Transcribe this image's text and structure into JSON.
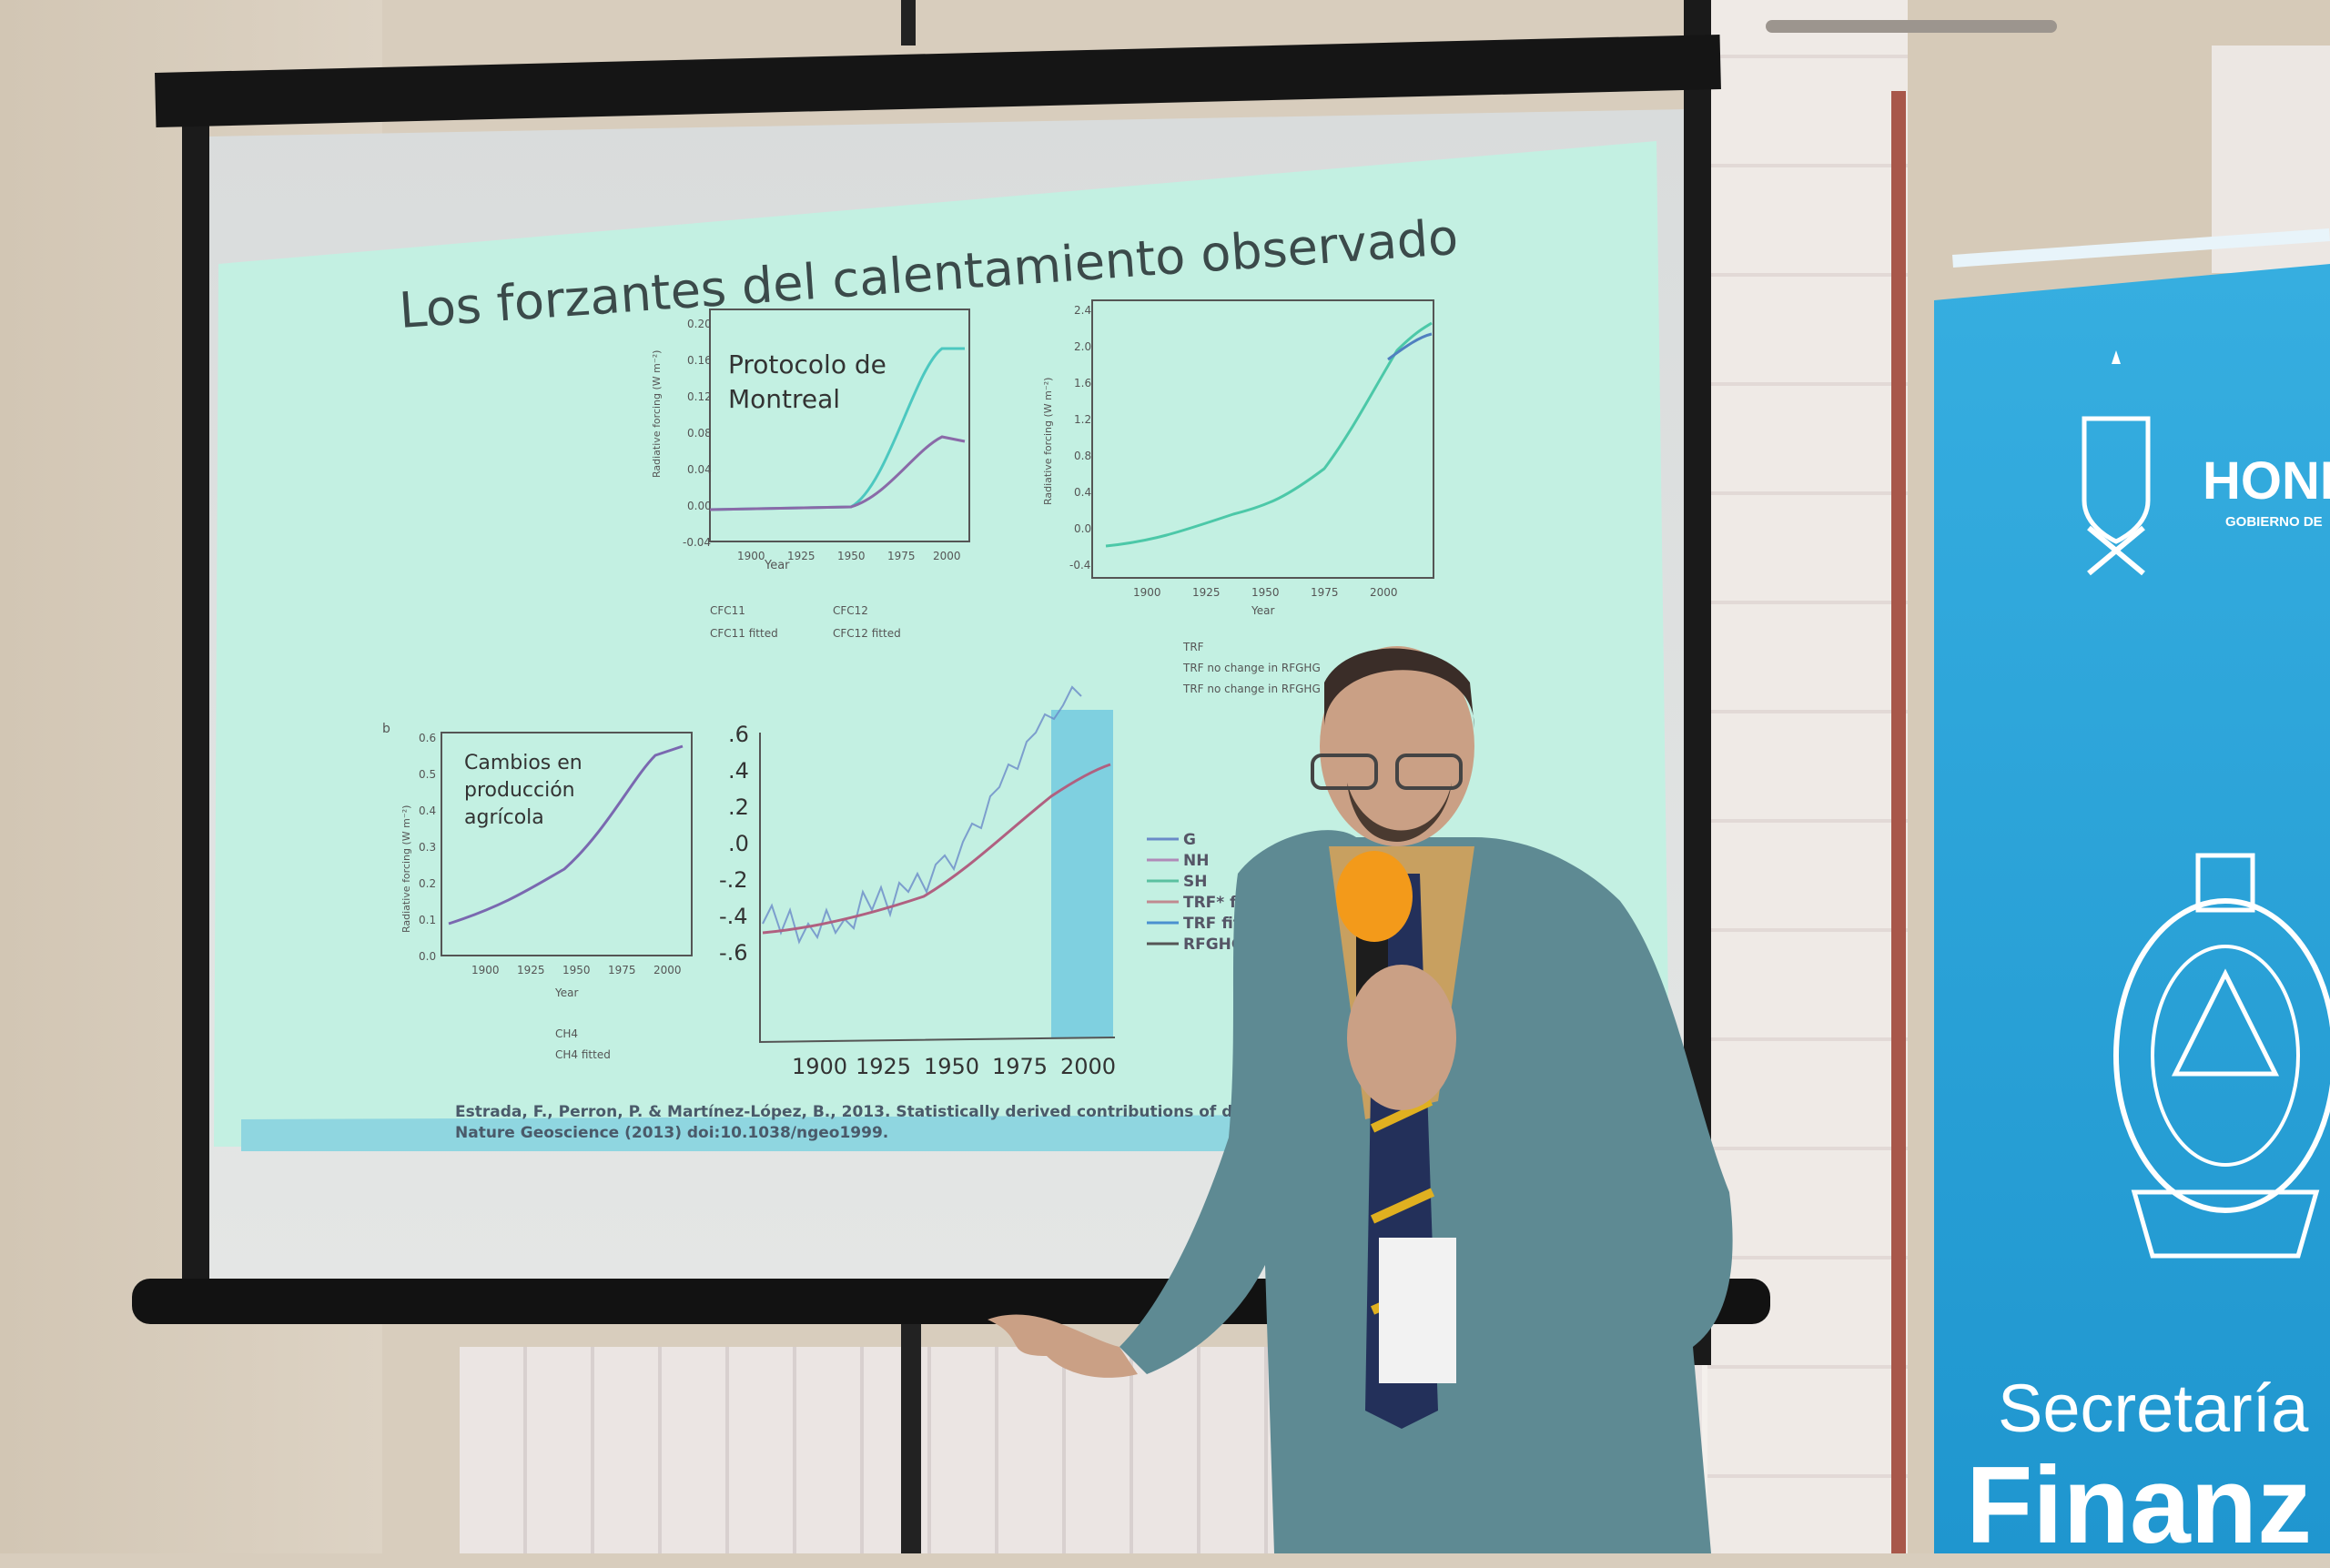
{
  "slide": {
    "title": "Los forzantes del calentamiento observado",
    "panel_top_left": {
      "annotation_line1": "Protocolo de",
      "annotation_line2": "Montreal",
      "yticks": [
        "0.20",
        "0.16",
        "0.12",
        "0.08",
        "0.04",
        "0.00",
        "-0.04"
      ],
      "xticks": [
        "1900",
        "1925",
        "1950",
        "1975",
        "2000"
      ],
      "xlabel": "Year",
      "ylabel": "Radiative forcing (W m⁻²)",
      "legend": [
        "CFC11",
        "CFC12",
        "CFC11 fitted",
        "CFC12 fitted"
      ]
    },
    "panel_top_right": {
      "yticks": [
        "2.4",
        "2.0",
        "1.6",
        "1.2",
        "0.8",
        "0.4",
        "0.0",
        "-0.4"
      ],
      "xticks": [
        "1900",
        "1925",
        "1950",
        "1975",
        "2000"
      ],
      "xlabel": "Year",
      "ylabel": "Radiative forcing (W m⁻²)",
      "legend": [
        "TRF",
        "TRF no change in RFGHG",
        "TRF no change in RFGHG"
      ]
    },
    "panel_bottom_left": {
      "panel_letter": "b",
      "annotation_line1": "Cambios en",
      "annotation_line2": "producción",
      "annotation_line3": "agrícola",
      "yticks": [
        "0.6",
        "0.5",
        "0.4",
        "0.3",
        "0.2",
        "0.1",
        "0.0"
      ],
      "xticks": [
        "1900",
        "1925",
        "1950",
        "1975",
        "2000"
      ],
      "xlabel": "Year",
      "ylabel": "Radiative forcing (W m⁻²)",
      "legend": [
        "CH4",
        "CH4 fitted"
      ]
    },
    "panel_bottom_mid": {
      "yticks": [
        ".6",
        ".4",
        ".2",
        ".0",
        "-.2",
        "-.4",
        "-.6"
      ],
      "xticks": [
        "1900",
        "1925",
        "1950",
        "1975",
        "2000"
      ],
      "legend": [
        "G",
        "NH",
        "SH",
        "TRF* fitted",
        "TRF fitted",
        "RFGHG"
      ]
    },
    "citation_line1": "Estrada, F., Perron, P. & Martínez-López, B., 2013. Statistically derived contributions of diverse human influences to t",
    "citation_line2": "Nature Geoscience (2013) doi:10.1038/ngeo1999."
  },
  "banner": {
    "name_partial": "HOND",
    "subtitle_partial": "GOBIERNO DE",
    "line1": "Secretaría",
    "line2_partial": "Finanz"
  },
  "colors": {
    "slide_bg": "#c3f0e2",
    "banner_blue": "#2aa3d8",
    "suit": "#5e8a93",
    "microphone": "#f39a1a"
  }
}
